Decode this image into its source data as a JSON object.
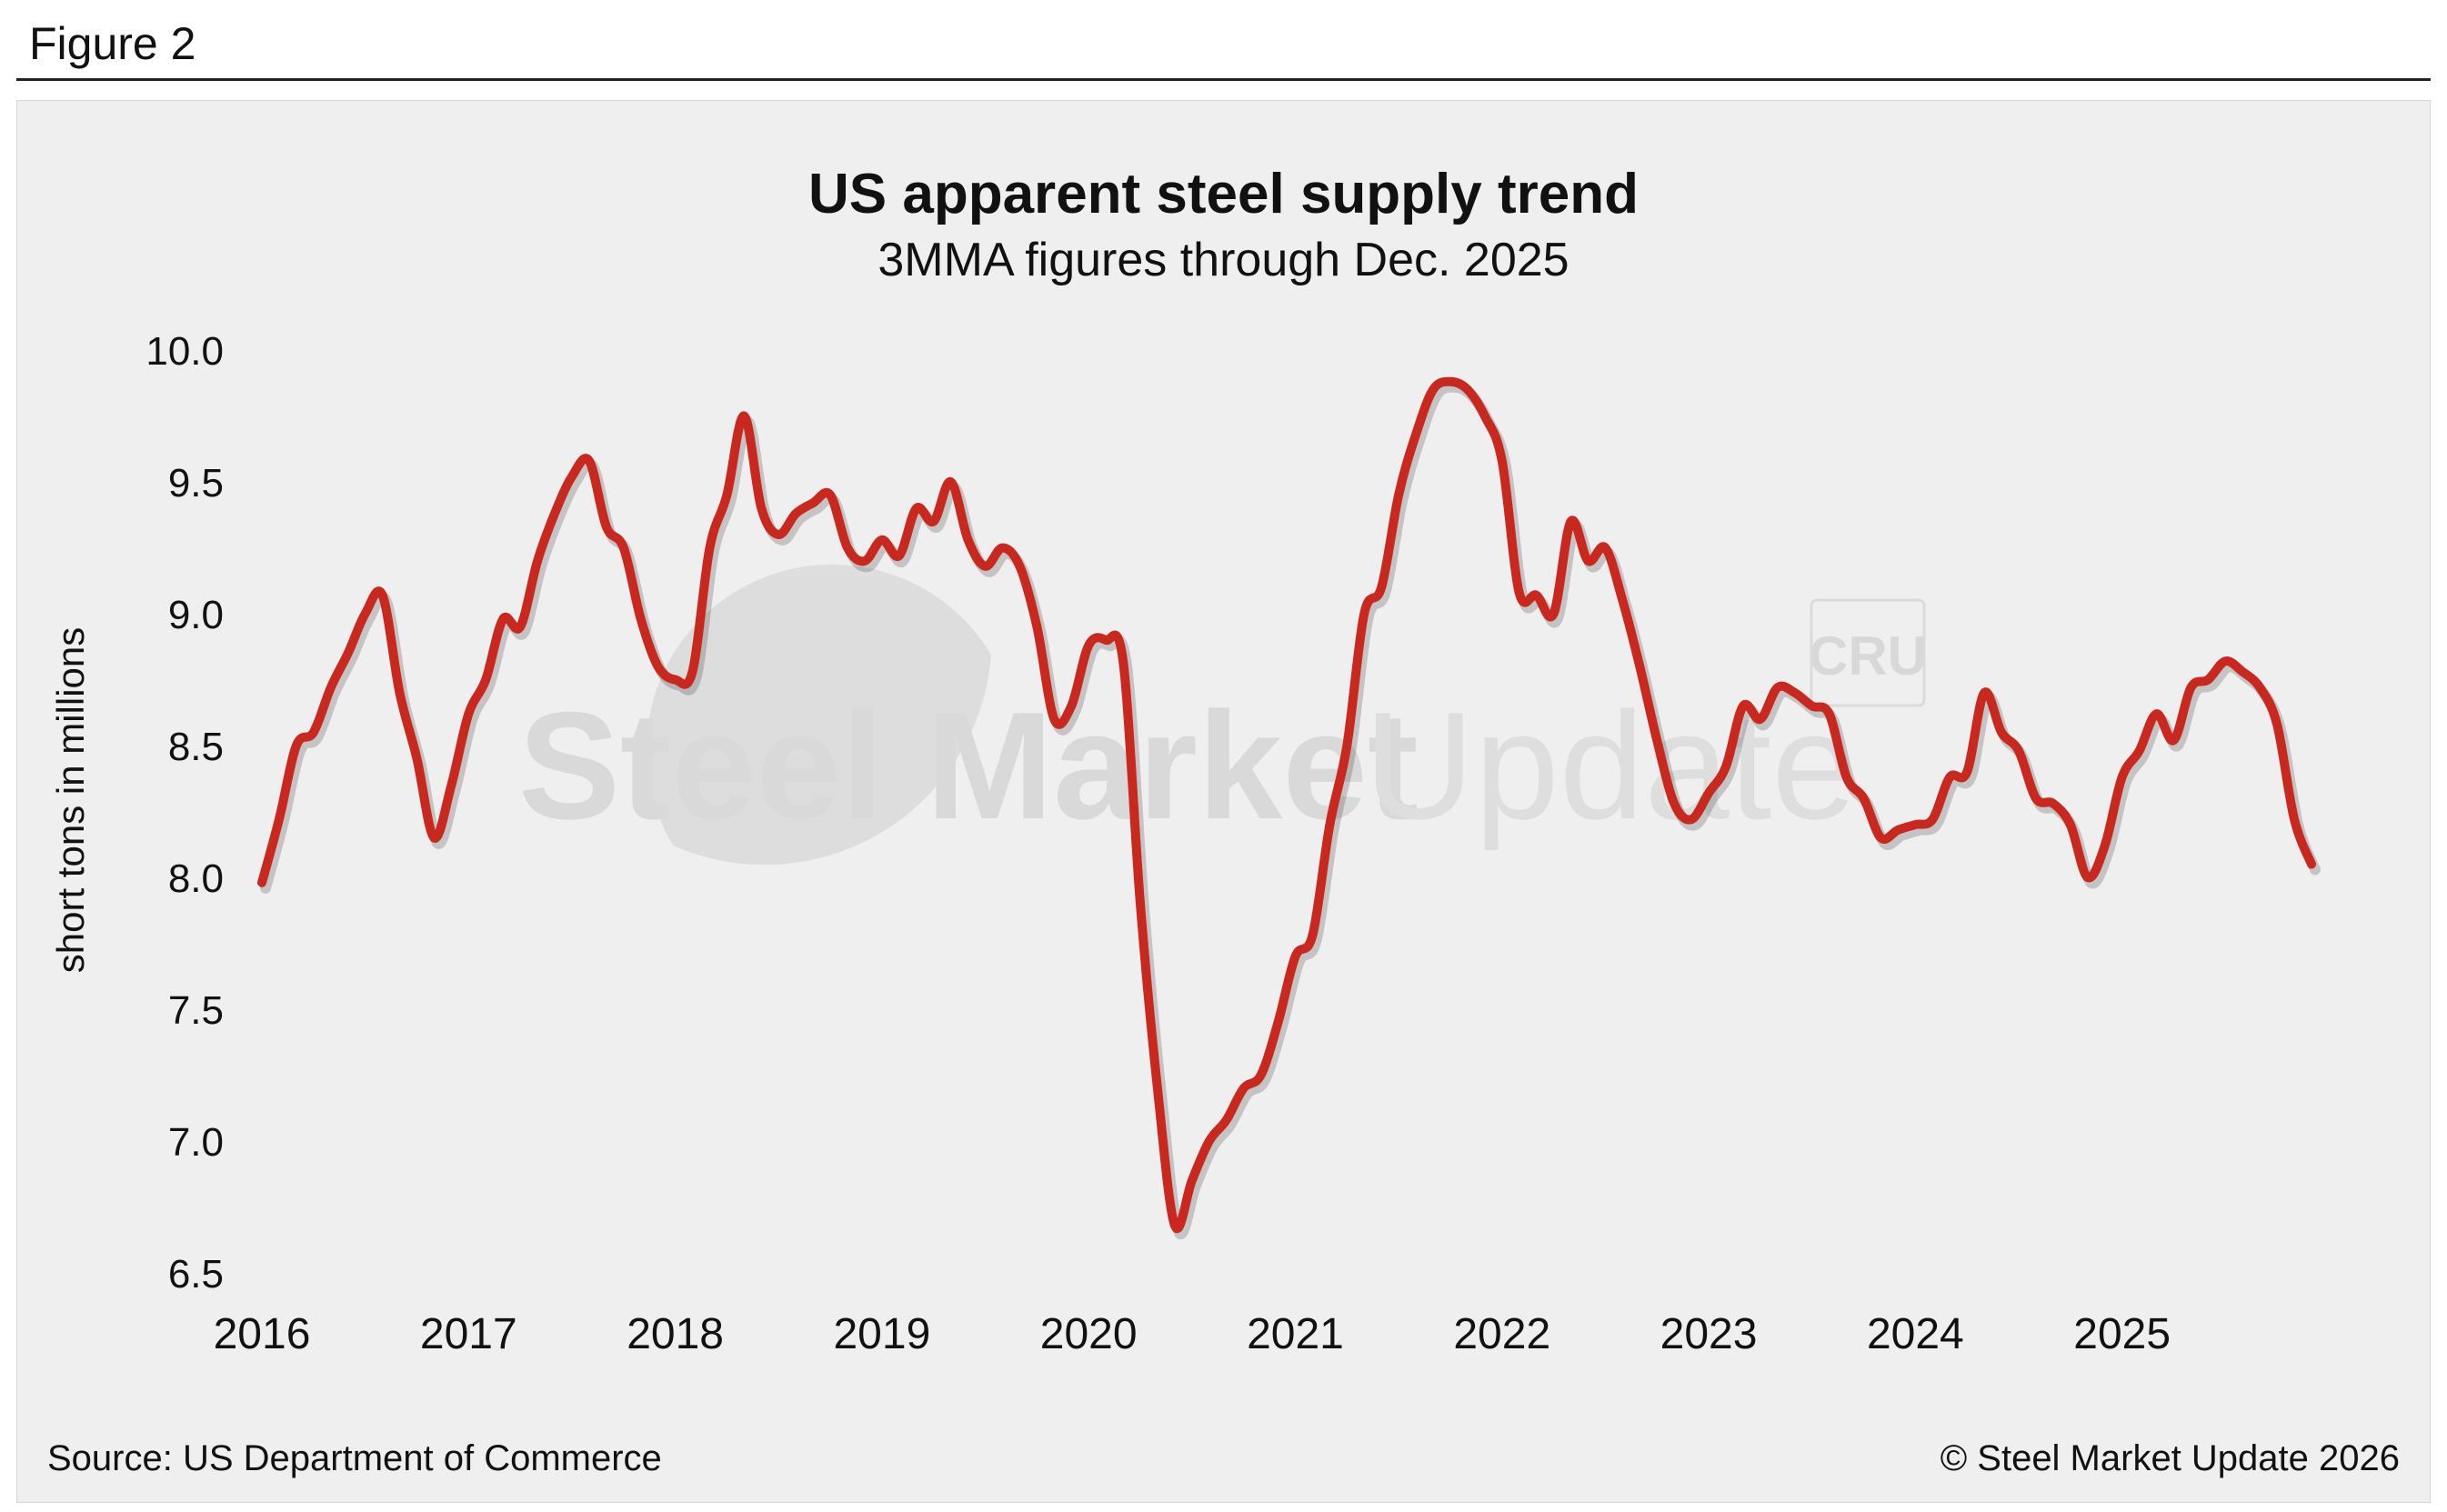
{
  "figure_label": "Figure 2",
  "source": "Source: US Department of Commerce",
  "copyright": "© Steel Market Update 2026",
  "watermark": {
    "text_bold": "Steel Market",
    "text_light": "Update",
    "badge": "CRU"
  },
  "colors": {
    "line": "#c8281e",
    "panel": "#efefef",
    "watermark": "#d9d9d9"
  },
  "chart_data": {
    "type": "line",
    "title": "US apparent steel supply trend",
    "subtitle": "3MMA figures through Dec. 2025",
    "xlabel": "",
    "ylabel": "short tons in millions",
    "ylim": [
      6.5,
      10.0
    ],
    "yticks": [
      "10.0",
      "9.5",
      "9.0",
      "8.5",
      "8.0",
      "7.5",
      "7.0",
      "6.5"
    ],
    "ytick_values": [
      10.0,
      9.5,
      9.0,
      8.5,
      8.0,
      7.5,
      7.0,
      6.5
    ],
    "xticks": [
      "2016",
      "2017",
      "2018",
      "2019",
      "2020",
      "2021",
      "2022",
      "2023",
      "2024",
      "2025"
    ],
    "x_start": "Jan 2016",
    "x_end": "Dec 2025",
    "grid": false,
    "series": [
      {
        "name": "US apparent steel supply (3MMA)",
        "values": [
          7.98,
          8.22,
          8.5,
          8.55,
          8.72,
          8.85,
          9.0,
          9.07,
          8.7,
          8.45,
          8.15,
          8.35,
          8.62,
          8.75,
          8.98,
          8.95,
          9.2,
          9.38,
          9.52,
          9.58,
          9.33,
          9.25,
          8.98,
          8.8,
          8.75,
          8.78,
          9.25,
          9.45,
          9.75,
          9.4,
          9.3,
          9.38,
          9.42,
          9.45,
          9.25,
          9.2,
          9.28,
          9.22,
          9.4,
          9.35,
          9.5,
          9.28,
          9.18,
          9.25,
          9.18,
          8.95,
          8.6,
          8.65,
          8.88,
          8.9,
          8.82,
          7.9,
          7.2,
          6.68,
          6.85,
          7.0,
          7.08,
          7.2,
          7.25,
          7.45,
          7.7,
          7.78,
          8.2,
          8.5,
          9.0,
          9.1,
          9.45,
          9.68,
          9.85,
          9.88,
          9.85,
          9.75,
          9.58,
          9.08,
          9.07,
          9.0,
          9.35,
          9.2,
          9.25,
          9.05,
          8.8,
          8.52,
          8.28,
          8.22,
          8.32,
          8.42,
          8.65,
          8.6,
          8.72,
          8.7,
          8.65,
          8.62,
          8.38,
          8.3,
          8.15,
          8.18,
          8.2,
          8.22,
          8.38,
          8.4,
          8.7,
          8.55,
          8.48,
          8.3,
          8.28,
          8.2,
          8.0,
          8.12,
          8.38,
          8.48,
          8.62,
          8.52,
          8.72,
          8.75,
          8.82,
          8.78,
          8.72,
          8.58,
          8.22,
          8.05
        ]
      }
    ]
  }
}
